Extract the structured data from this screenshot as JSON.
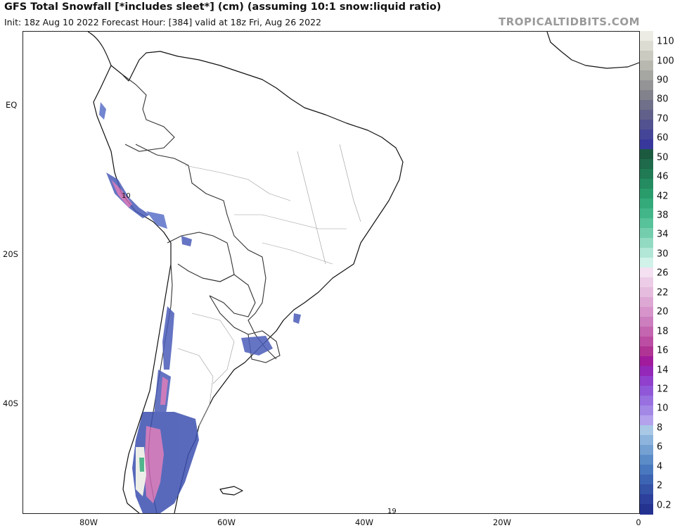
{
  "header": {
    "title": "GFS Total Snowfall [*includes sleet*] (cm) (assuming 10:1 snow:liquid ratio)",
    "subtitle": "Init: 18z Aug 10 2022   Forecast Hour: [384]   valid at 18z Fri, Aug 26 2022",
    "brand": "TROPICALTIDBITS.COM"
  },
  "axes": {
    "lat_labels": [
      "EQ",
      "20S",
      "40S"
    ],
    "lon_labels": [
      "80W",
      "60W",
      "40W",
      "20W",
      "0"
    ]
  },
  "map_annotations": {
    "peru_value": "10",
    "atlantic_value": "19"
  },
  "colorbar": {
    "labels": [
      "110",
      "100",
      "90",
      "80",
      "70",
      "60",
      "50",
      "46",
      "42",
      "38",
      "34",
      "30",
      "26",
      "22",
      "20",
      "18",
      "16",
      "14",
      "12",
      "10",
      "8",
      "6",
      "4",
      "2",
      "0.2"
    ],
    "colors": [
      "#ecece4",
      "#dcdcd2",
      "#cacac0",
      "#b8b8b0",
      "#a6a6a2",
      "#949496",
      "#82828c",
      "#70708a",
      "#60608a",
      "#525290",
      "#454598",
      "#38389c",
      "#1c5a40",
      "#1e6a4a",
      "#207a54",
      "#248c60",
      "#2a9c6c",
      "#34aa7a",
      "#42b688",
      "#58c29a",
      "#74ceae",
      "#92dac2",
      "#b2e6d6",
      "#d0f2e8",
      "#f4e0f0",
      "#eccce6",
      "#e6bcde",
      "#dea8d4",
      "#d694ca",
      "#cc7ebe",
      "#c466b0",
      "#bb4ea2",
      "#b03494",
      "#a01c9c",
      "#9428b8",
      "#9040cc",
      "#9058d8",
      "#9870e0",
      "#a488e6",
      "#b4a2ec",
      "#a8c8e6",
      "#8cb4dc",
      "#74a0d2",
      "#5c8cc8",
      "#4a78be",
      "#3c64b2",
      "#3452a6",
      "#2c409c",
      "#243290"
    ]
  }
}
